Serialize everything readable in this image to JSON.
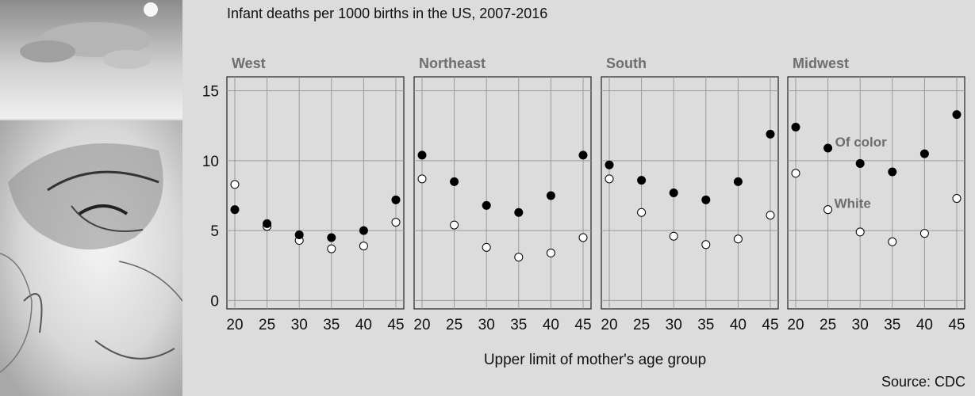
{
  "chart_data": {
    "type": "scatter",
    "title": "Infant deaths per 1000 births in the US, 2007-2016",
    "xlabel": "Upper limit of mother's age group",
    "ylabel": "",
    "source": "Source: CDC",
    "x": [
      20,
      25,
      30,
      35,
      40,
      45
    ],
    "x_ticks": [
      "20",
      "25",
      "30",
      "35",
      "40",
      "45"
    ],
    "y_ticks": [
      "0",
      "5",
      "10",
      "15"
    ],
    "ylim": [
      -0.6,
      16
    ],
    "grid": true,
    "legend": "annotations in Midwest panel",
    "annotations": {
      "of_color": "Of color",
      "white": "White"
    },
    "colors": {
      "of_color": "#000000",
      "white": "#ffffff",
      "panel": "#dcdcdc",
      "grid": "#9a9a9a",
      "label": "#6e6e6e"
    },
    "panels": [
      {
        "name": "West",
        "series": [
          {
            "key": "of_color",
            "values": [
              6.5,
              5.5,
              4.7,
              4.5,
              5.0,
              7.2
            ]
          },
          {
            "key": "white",
            "values": [
              8.3,
              5.3,
              4.3,
              3.7,
              3.9,
              5.6
            ]
          }
        ]
      },
      {
        "name": "Northeast",
        "series": [
          {
            "key": "of_color",
            "values": [
              10.4,
              8.5,
              6.8,
              6.3,
              7.5,
              10.4
            ]
          },
          {
            "key": "white",
            "values": [
              8.7,
              5.4,
              3.8,
              3.1,
              3.4,
              4.5
            ]
          }
        ]
      },
      {
        "name": "South",
        "series": [
          {
            "key": "of_color",
            "values": [
              9.7,
              8.6,
              7.7,
              7.2,
              8.5,
              11.9
            ]
          },
          {
            "key": "white",
            "values": [
              8.7,
              6.3,
              4.6,
              4.0,
              4.4,
              6.1
            ]
          }
        ]
      },
      {
        "name": "Midwest",
        "series": [
          {
            "key": "of_color",
            "values": [
              12.4,
              10.9,
              9.8,
              9.2,
              10.5,
              13.3
            ]
          },
          {
            "key": "white",
            "values": [
              9.1,
              6.5,
              4.9,
              4.2,
              4.8,
              7.3
            ]
          }
        ]
      }
    ]
  }
}
